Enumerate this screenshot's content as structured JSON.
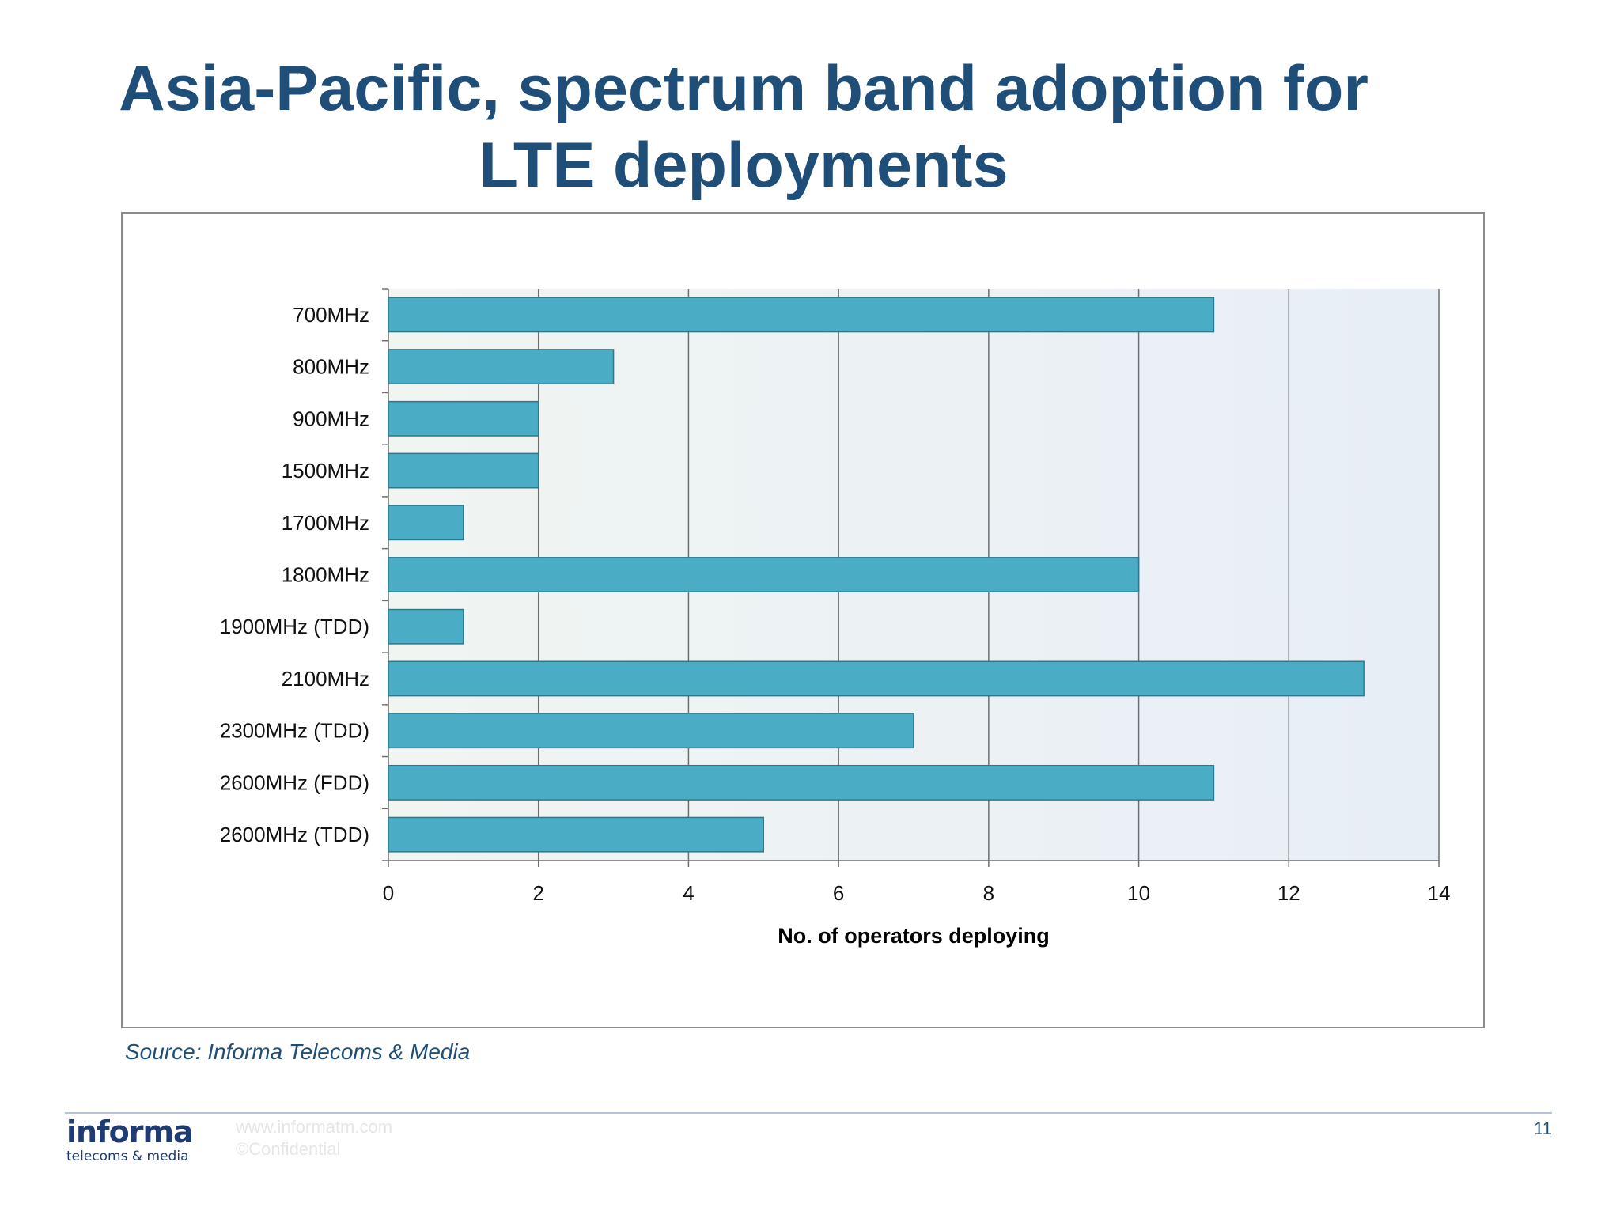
{
  "slide": {
    "title_line1": "Asia-Pacific, spectrum band adoption for",
    "title_line2": "LTE deployments",
    "source": "Source: Informa Telecoms & Media",
    "page_number": "11"
  },
  "footer": {
    "logo_main": "informa",
    "logo_sub": "telecoms & media",
    "website": "www.informatm.com",
    "confidential": "©Confidential"
  },
  "colors": {
    "title": "#1f4e79",
    "bar_fill": "#4bacc6",
    "bar_stroke": "#2b7a8c",
    "plot_bg_left": "#f0f5f2",
    "plot_bg_right": "#e8eef6",
    "gridline": "#6e6e6e"
  },
  "chart_data": {
    "type": "bar",
    "orientation": "horizontal",
    "categories": [
      "700MHz",
      "800MHz",
      "900MHz",
      "1500MHz",
      "1700MHz",
      "1800MHz",
      "1900MHz (TDD)",
      "2100MHz",
      "2300MHz (TDD)",
      "2600MHz (FDD)",
      "2600MHz (TDD)"
    ],
    "values": [
      11,
      3,
      2,
      2,
      1,
      10,
      1,
      13,
      7,
      11,
      5
    ],
    "xlim": [
      0,
      14
    ],
    "xticks": [
      0,
      2,
      4,
      6,
      8,
      10,
      12,
      14
    ],
    "xlabel": "No. of operators deploying",
    "ylabel": "",
    "grid": "vertical",
    "legend": "none"
  }
}
